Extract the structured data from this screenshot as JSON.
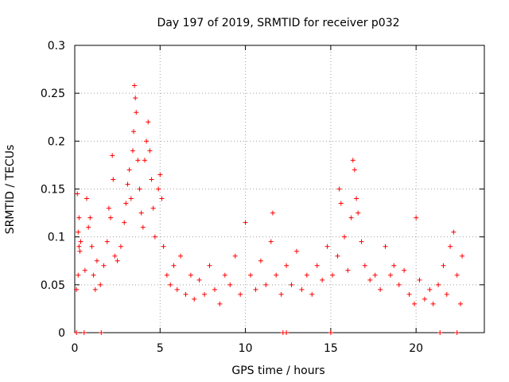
{
  "chart_data": {
    "type": "scatter",
    "title": "Day 197 of 2019, SRMTID for receiver p032",
    "xlabel": "GPS time / hours",
    "ylabel": "SRMTID / TECUs",
    "xlim": [
      0,
      24
    ],
    "ylim": [
      0,
      0.3
    ],
    "x_ticks": [
      0,
      5,
      10,
      15,
      20
    ],
    "x_tick_labels": [
      "0",
      "5",
      "10",
      "15",
      "20"
    ],
    "y_ticks": [
      0,
      0.05,
      0.1,
      0.15,
      0.2,
      0.25,
      0.3
    ],
    "y_tick_labels": [
      "0",
      "0.05",
      "0.1",
      "0.15",
      "0.2",
      "0.25",
      "0.3"
    ],
    "grid": true,
    "marker": "plus",
    "series_color": "#ff0000",
    "series": [
      {
        "name": "SRMTID",
        "points": [
          [
            0.1,
            0.0
          ],
          [
            0.55,
            0.0
          ],
          [
            1.55,
            0.0
          ],
          [
            12.2,
            0.0
          ],
          [
            12.4,
            0.0
          ],
          [
            15.0,
            0.0
          ],
          [
            21.4,
            0.0
          ],
          [
            22.4,
            0.0
          ],
          [
            0.15,
            0.145
          ],
          [
            0.2,
            0.105
          ],
          [
            0.25,
            0.09
          ],
          [
            0.3,
            0.085
          ],
          [
            0.2,
            0.06
          ],
          [
            0.1,
            0.045
          ],
          [
            0.35,
            0.095
          ],
          [
            0.25,
            0.12
          ],
          [
            0.6,
            0.065
          ],
          [
            0.7,
            0.14
          ],
          [
            0.8,
            0.11
          ],
          [
            0.9,
            0.12
          ],
          [
            1.0,
            0.09
          ],
          [
            1.1,
            0.06
          ],
          [
            1.2,
            0.045
          ],
          [
            1.3,
            0.075
          ],
          [
            1.5,
            0.05
          ],
          [
            1.7,
            0.07
          ],
          [
            1.9,
            0.095
          ],
          [
            2.0,
            0.13
          ],
          [
            2.1,
            0.12
          ],
          [
            2.2,
            0.185
          ],
          [
            2.25,
            0.16
          ],
          [
            2.35,
            0.08
          ],
          [
            2.5,
            0.075
          ],
          [
            2.7,
            0.09
          ],
          [
            2.9,
            0.115
          ],
          [
            3.0,
            0.135
          ],
          [
            3.1,
            0.155
          ],
          [
            3.2,
            0.17
          ],
          [
            3.3,
            0.14
          ],
          [
            3.4,
            0.19
          ],
          [
            3.45,
            0.21
          ],
          [
            3.5,
            0.258
          ],
          [
            3.55,
            0.245
          ],
          [
            3.6,
            0.23
          ],
          [
            3.7,
            0.18
          ],
          [
            3.8,
            0.15
          ],
          [
            3.9,
            0.125
          ],
          [
            4.0,
            0.11
          ],
          [
            4.1,
            0.18
          ],
          [
            4.2,
            0.2
          ],
          [
            4.3,
            0.22
          ],
          [
            4.4,
            0.19
          ],
          [
            4.5,
            0.16
          ],
          [
            4.6,
            0.13
          ],
          [
            4.7,
            0.1
          ],
          [
            4.9,
            0.15
          ],
          [
            5.0,
            0.165
          ],
          [
            5.1,
            0.14
          ],
          [
            5.2,
            0.09
          ],
          [
            5.4,
            0.06
          ],
          [
            5.6,
            0.05
          ],
          [
            5.8,
            0.07
          ],
          [
            6.0,
            0.045
          ],
          [
            6.2,
            0.08
          ],
          [
            6.5,
            0.04
          ],
          [
            6.8,
            0.06
          ],
          [
            7.0,
            0.035
          ],
          [
            7.3,
            0.055
          ],
          [
            7.6,
            0.04
          ],
          [
            7.9,
            0.07
          ],
          [
            8.2,
            0.045
          ],
          [
            8.5,
            0.03
          ],
          [
            8.8,
            0.06
          ],
          [
            9.1,
            0.05
          ],
          [
            9.4,
            0.08
          ],
          [
            9.7,
            0.04
          ],
          [
            10.0,
            0.115
          ],
          [
            10.3,
            0.06
          ],
          [
            10.6,
            0.045
          ],
          [
            10.9,
            0.075
          ],
          [
            11.2,
            0.05
          ],
          [
            11.5,
            0.095
          ],
          [
            11.6,
            0.125
          ],
          [
            11.8,
            0.06
          ],
          [
            12.1,
            0.04
          ],
          [
            12.4,
            0.07
          ],
          [
            12.7,
            0.05
          ],
          [
            13.0,
            0.085
          ],
          [
            13.3,
            0.045
          ],
          [
            13.6,
            0.06
          ],
          [
            13.9,
            0.04
          ],
          [
            14.2,
            0.07
          ],
          [
            14.5,
            0.055
          ],
          [
            14.8,
            0.09
          ],
          [
            15.1,
            0.06
          ],
          [
            15.4,
            0.08
          ],
          [
            15.5,
            0.15
          ],
          [
            15.6,
            0.135
          ],
          [
            15.8,
            0.1
          ],
          [
            16.0,
            0.065
          ],
          [
            16.2,
            0.12
          ],
          [
            16.3,
            0.18
          ],
          [
            16.4,
            0.17
          ],
          [
            16.5,
            0.14
          ],
          [
            16.6,
            0.125
          ],
          [
            16.8,
            0.095
          ],
          [
            17.0,
            0.07
          ],
          [
            17.3,
            0.055
          ],
          [
            17.6,
            0.06
          ],
          [
            17.9,
            0.045
          ],
          [
            18.2,
            0.09
          ],
          [
            18.5,
            0.06
          ],
          [
            18.7,
            0.07
          ],
          [
            19.0,
            0.05
          ],
          [
            19.3,
            0.065
          ],
          [
            19.6,
            0.04
          ],
          [
            19.9,
            0.03
          ],
          [
            20.0,
            0.12
          ],
          [
            20.2,
            0.055
          ],
          [
            20.5,
            0.035
          ],
          [
            20.8,
            0.045
          ],
          [
            21.0,
            0.03
          ],
          [
            21.3,
            0.05
          ],
          [
            21.6,
            0.07
          ],
          [
            21.8,
            0.04
          ],
          [
            22.0,
            0.09
          ],
          [
            22.2,
            0.105
          ],
          [
            22.4,
            0.06
          ],
          [
            22.6,
            0.03
          ],
          [
            22.7,
            0.08
          ]
        ]
      }
    ]
  }
}
